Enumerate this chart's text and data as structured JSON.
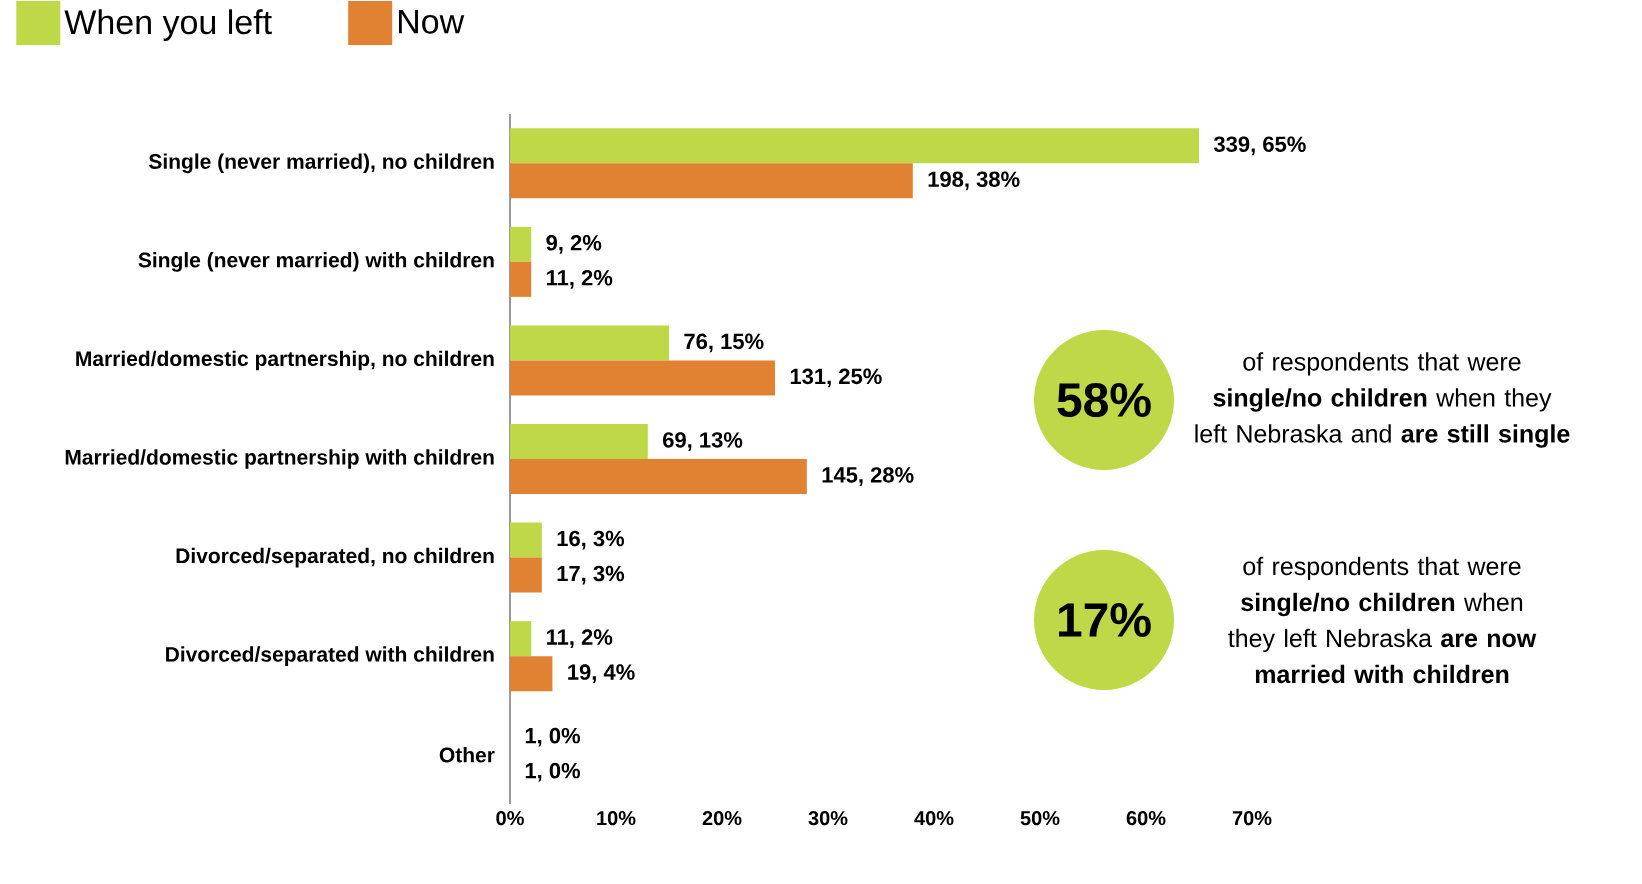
{
  "chart_data": {
    "type": "bar",
    "orientation": "horizontal",
    "legend": "top left",
    "categories": [
      "Single (never married), no children",
      "Single (never married) with children",
      "Married/domestic partnership, no children",
      "Married/domestic partnership with children",
      "Divorced/separated, no children",
      "Divorced/separated with children",
      "Other"
    ],
    "series": [
      {
        "name": "When you left",
        "color": "#bfd848",
        "values": [
          65,
          2,
          15,
          13,
          3,
          2,
          0
        ],
        "value_labels": [
          "339, 65%",
          "9, 2%",
          "76, 15%",
          "69, 13%",
          "16, 3%",
          "11, 2%",
          "1, 0%"
        ]
      },
      {
        "name": "Now",
        "color": "#e08232",
        "values": [
          38,
          2,
          25,
          28,
          3,
          4,
          0
        ],
        "value_labels": [
          "198, 38%",
          "11, 2%",
          "131, 25%",
          "145, 28%",
          "17, 3%",
          "19, 4%",
          "1, 0%"
        ]
      }
    ],
    "xlim": [
      0,
      70
    ],
    "xticks": [
      {
        "value": 0,
        "label": "0%"
      },
      {
        "value": 10,
        "label": "10%"
      },
      {
        "value": 20,
        "label": "20%"
      },
      {
        "value": 30,
        "label": "30%"
      },
      {
        "value": 40,
        "label": "40%"
      },
      {
        "value": 50,
        "label": "50%"
      },
      {
        "value": 60,
        "label": "60%"
      },
      {
        "value": 70,
        "label": "70%"
      }
    ],
    "annotations": [
      "58%",
      "of respondents that were **single/no children** when they left Nebraska and **are still single**",
      "17%",
      "of respondents that were **single/no children** when they left Nebraska **are now married with children**"
    ]
  }
}
